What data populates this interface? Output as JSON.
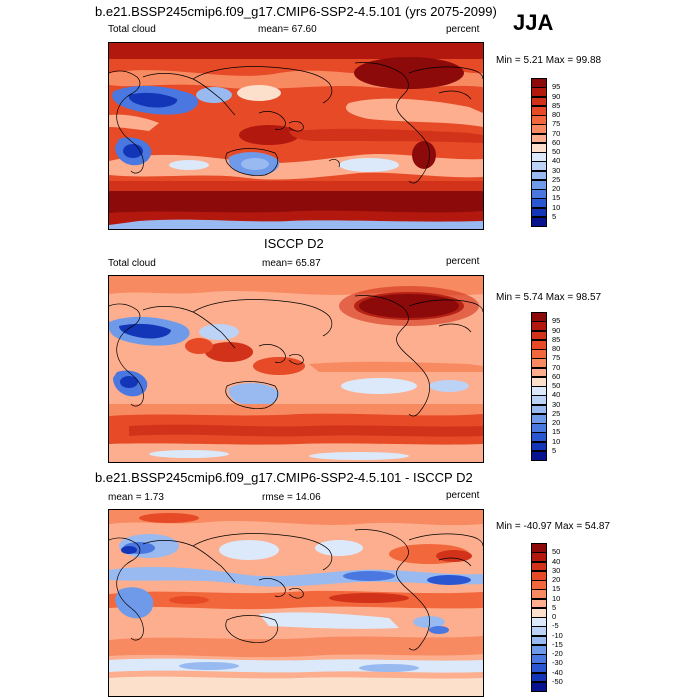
{
  "season": "JJA",
  "panels": [
    {
      "title": "b.e21.BSSP245cmip6.f09_g17.CMIP6-SSP2-4.5.101 (yrs 2075-2099)",
      "left_label": "Total cloud",
      "center_label": "mean=  67.60",
      "right_label": "percent",
      "minmax": "Min =   5.21 Max =  99.88",
      "colorbar": {
        "labels": [
          "95",
          "90",
          "85",
          "80",
          "75",
          "70",
          "60",
          "50",
          "40",
          "30",
          "25",
          "20",
          "15",
          "10",
          "5"
        ],
        "colors": [
          "#8c0a0a",
          "#b3180e",
          "#d2321a",
          "#e64a26",
          "#f2673c",
          "#f88a62",
          "#fcae8e",
          "#fde0cc",
          "#dce9fa",
          "#bcd3f6",
          "#98baf0",
          "#6f9aea",
          "#4a78e0",
          "#2a56d2",
          "#1336b8",
          "#06128e"
        ]
      }
    },
    {
      "title": "ISCCP D2",
      "left_label": "Total cloud",
      "center_label": "mean=  65.87",
      "right_label": "percent",
      "minmax": "Min =   5.74 Max =  98.57",
      "colorbar": {
        "labels": [
          "95",
          "90",
          "85",
          "80",
          "75",
          "70",
          "60",
          "50",
          "40",
          "30",
          "25",
          "20",
          "15",
          "10",
          "5"
        ],
        "colors": [
          "#8c0a0a",
          "#b3180e",
          "#d2321a",
          "#e64a26",
          "#f2673c",
          "#f88a62",
          "#fcae8e",
          "#fde0cc",
          "#dce9fa",
          "#bcd3f6",
          "#98baf0",
          "#6f9aea",
          "#4a78e0",
          "#2a56d2",
          "#1336b8",
          "#06128e"
        ]
      }
    },
    {
      "title": "b.e21.BSSP245cmip6.f09_g17.CMIP6-SSP2-4.5.101 - ISCCP D2",
      "left_label": "mean =   1.73",
      "center_label": "rmse =  14.06",
      "right_label": "percent",
      "minmax": "Min = -40.97 Max =  54.87",
      "colorbar": {
        "labels": [
          "50",
          "40",
          "30",
          "20",
          "15",
          "10",
          "5",
          "0",
          "-5",
          "-10",
          "-15",
          "-20",
          "-30",
          "-40",
          "-50"
        ],
        "colors": [
          "#8c0a0a",
          "#b3180e",
          "#d2321a",
          "#e64a26",
          "#f2673c",
          "#f88a62",
          "#fcae8e",
          "#fde0cc",
          "#dce9fa",
          "#bcd3f6",
          "#98baf0",
          "#6f9aea",
          "#4a78e0",
          "#2a56d2",
          "#1336b8",
          "#06128e"
        ]
      }
    }
  ]
}
